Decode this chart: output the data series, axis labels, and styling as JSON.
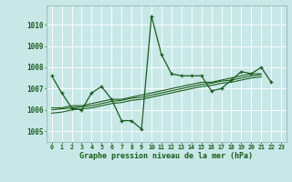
{
  "xlabel": "Graphe pression niveau de la mer (hPa)",
  "background_color": "#c8e8e8",
  "line_color": "#1a5c1a",
  "x_values": [
    0,
    1,
    2,
    3,
    4,
    5,
    6,
    7,
    8,
    9,
    10,
    11,
    12,
    13,
    14,
    15,
    16,
    17,
    18,
    19,
    20,
    21,
    22,
    23
  ],
  "series": [
    [
      1007.6,
      1006.8,
      1006.1,
      1006.0,
      1006.8,
      1007.1,
      1006.5,
      1005.5,
      1005.5,
      1005.1,
      1010.4,
      1008.6,
      1007.7,
      1007.6,
      1007.6,
      1007.6,
      1006.9,
      1007.0,
      1007.4,
      1007.8,
      1007.7,
      1008.0,
      1007.3,
      null
    ],
    [
      1006.1,
      1006.1,
      1006.2,
      1006.2,
      1006.3,
      1006.4,
      1006.5,
      1006.5,
      1006.6,
      1006.7,
      1006.8,
      1006.9,
      1007.0,
      1007.1,
      1007.2,
      1007.3,
      1007.3,
      1007.4,
      1007.5,
      1007.6,
      1007.7,
      1007.7,
      null,
      null
    ],
    [
      1006.0,
      1006.05,
      1006.1,
      1006.15,
      1006.2,
      1006.3,
      1006.4,
      1006.45,
      1006.55,
      1006.6,
      1006.7,
      1006.8,
      1006.9,
      1007.0,
      1007.1,
      1007.2,
      1007.25,
      1007.35,
      1007.4,
      1007.5,
      1007.6,
      1007.65,
      null,
      null
    ],
    [
      1005.85,
      1005.9,
      1006.0,
      1006.05,
      1006.1,
      1006.2,
      1006.3,
      1006.35,
      1006.45,
      1006.5,
      1006.6,
      1006.7,
      1006.8,
      1006.9,
      1007.0,
      1007.1,
      1007.15,
      1007.25,
      1007.3,
      1007.4,
      1007.5,
      1007.55,
      null,
      null
    ]
  ],
  "ylim": [
    1004.5,
    1010.9
  ],
  "xlim": [
    -0.5,
    23.5
  ],
  "yticks": [
    1005,
    1006,
    1007,
    1008,
    1009,
    1010
  ],
  "xticks": [
    0,
    1,
    2,
    3,
    4,
    5,
    6,
    7,
    8,
    9,
    10,
    11,
    12,
    13,
    14,
    15,
    16,
    17,
    18,
    19,
    20,
    21,
    22,
    23
  ],
  "grid_color": "#b0d8d8",
  "spine_color": "#8aacac"
}
